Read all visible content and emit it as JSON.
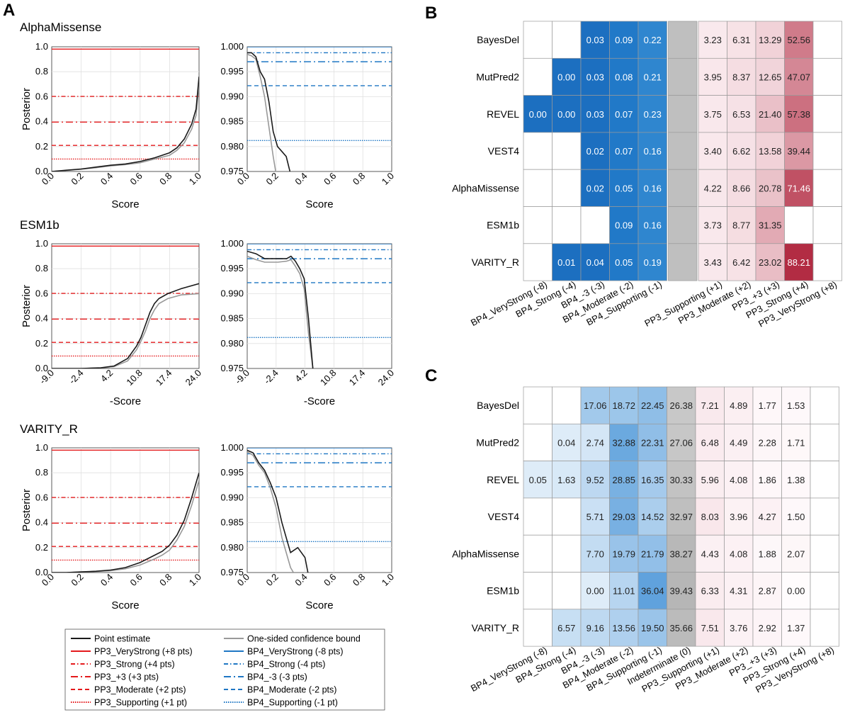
{
  "panel_labels": {
    "a": "A",
    "b": "B",
    "c": "C"
  },
  "chart_data": [
    {
      "type": "line",
      "panel": "A",
      "title": "AlphaMissense",
      "ylabel": "Posterior",
      "left": {
        "xlabel": "Score",
        "xlim": [
          0,
          1
        ],
        "ylim": [
          0,
          1
        ],
        "xticks": [
          "0.0",
          "0.2",
          "0.4",
          "0.6",
          "0.8",
          "1.0"
        ],
        "yticks": [
          "0.0",
          "0.2",
          "0.4",
          "0.6",
          "0.8",
          "1.0"
        ],
        "series": [
          {
            "name": "Point estimate",
            "x": [
              0,
              0.1,
              0.2,
              0.3,
              0.4,
              0.5,
              0.6,
              0.7,
              0.8,
              0.85,
              0.9,
              0.95,
              0.98,
              1.0
            ],
            "y": [
              0,
              0.01,
              0.02,
              0.035,
              0.05,
              0.06,
              0.08,
              0.11,
              0.15,
              0.19,
              0.26,
              0.38,
              0.5,
              0.76
            ]
          },
          {
            "name": "One-sided confidence bound",
            "x": [
              0,
              0.1,
              0.2,
              0.3,
              0.4,
              0.5,
              0.6,
              0.7,
              0.8,
              0.85,
              0.9,
              0.95,
              0.98,
              1.0
            ],
            "y": [
              0,
              0.008,
              0.018,
              0.03,
              0.045,
              0.055,
              0.07,
              0.1,
              0.13,
              0.17,
              0.23,
              0.34,
              0.45,
              0.7
            ]
          }
        ]
      },
      "right": {
        "xlabel": "Score",
        "xlim": [
          0,
          1
        ],
        "ylim": [
          0.975,
          1.0
        ],
        "xticks": [
          "0.0",
          "0.2",
          "0.4",
          "0.6",
          "0.8",
          "1.0"
        ],
        "yticks": [
          "0.975",
          "0.980",
          "0.985",
          "0.990",
          "0.995",
          "1.000"
        ],
        "series": [
          {
            "name": "Point estimate",
            "x": [
              0,
              0.03,
              0.06,
              0.09,
              0.12,
              0.15,
              0.18,
              0.21,
              0.24,
              0.27,
              0.3
            ],
            "y": [
              0.9988,
              0.9988,
              0.998,
              0.995,
              0.9935,
              0.989,
              0.983,
              0.98,
              0.979,
              0.978,
              0.9745
            ]
          },
          {
            "name": "One-sided confidence bound",
            "x": [
              0,
              0.03,
              0.06,
              0.09,
              0.12,
              0.15,
              0.18,
              0.2
            ],
            "y": [
              0.9985,
              0.9982,
              0.9975,
              0.994,
              0.99,
              0.984,
              0.978,
              0.9745
            ]
          }
        ]
      }
    },
    {
      "type": "line",
      "panel": "A",
      "title": "ESM1b",
      "ylabel": "Posterior",
      "left": {
        "xlabel": "-Score",
        "xlim": [
          -9,
          24
        ],
        "ylim": [
          0,
          1
        ],
        "xticks": [
          "-9.0",
          "-2.4",
          "4.2",
          "10.8",
          "17.4",
          "24.0"
        ],
        "yticks": [
          "0.0",
          "0.2",
          "0.4",
          "0.6",
          "0.8",
          "1.0"
        ],
        "series": [
          {
            "name": "Point estimate",
            "x": [
              -9,
              -2.4,
              2,
              5,
              8,
              10,
              11,
              12,
              13,
              14,
              15,
              17,
              20,
              24
            ],
            "y": [
              0,
              0,
              0.005,
              0.02,
              0.08,
              0.18,
              0.25,
              0.35,
              0.45,
              0.52,
              0.56,
              0.6,
              0.64,
              0.68
            ]
          },
          {
            "name": "One-sided confidence bound",
            "x": [
              -9,
              -2.4,
              2,
              5,
              8,
              10,
              11,
              12,
              13,
              14,
              15,
              17,
              20,
              24
            ],
            "y": [
              0,
              0,
              0.004,
              0.015,
              0.06,
              0.15,
              0.22,
              0.3,
              0.4,
              0.47,
              0.52,
              0.56,
              0.59,
              0.6
            ]
          }
        ]
      },
      "right": {
        "xlabel": "-Score",
        "xlim": [
          -9,
          24
        ],
        "ylim": [
          0.975,
          1.0
        ],
        "xticks": [
          "-9.0",
          "-2.4",
          "4.2",
          "10.8",
          "17.4",
          "24.0"
        ],
        "yticks": [
          "0.975",
          "0.980",
          "0.985",
          "0.990",
          "0.995",
          "1.000"
        ],
        "series": [
          {
            "name": "Point estimate",
            "x": [
              -9,
              -7,
              -5,
              -2,
              0,
              1,
              2,
              3,
              4,
              5,
              6
            ],
            "y": [
              0.9985,
              0.998,
              0.997,
              0.997,
              0.997,
              0.9975,
              0.9965,
              0.995,
              0.993,
              0.985,
              0.975
            ]
          },
          {
            "name": "One-sided confidence bound",
            "x": [
              -9,
              -7,
              -5,
              -2,
              0,
              1,
              2,
              3,
              4,
              5,
              6
            ],
            "y": [
              0.9975,
              0.9968,
              0.9963,
              0.9963,
              0.9965,
              0.9968,
              0.9955,
              0.994,
              0.991,
              0.982,
              0.975
            ]
          }
        ]
      }
    },
    {
      "type": "line",
      "panel": "A",
      "title": "VARITY_R",
      "ylabel": "Posterior",
      "left": {
        "xlabel": "Score",
        "xlim": [
          0,
          1
        ],
        "ylim": [
          0,
          1
        ],
        "xticks": [
          "0.0",
          "0.2",
          "0.4",
          "0.6",
          "0.8",
          "1.0"
        ],
        "yticks": [
          "0.0",
          "0.2",
          "0.4",
          "0.6",
          "0.8",
          "1.0"
        ],
        "series": [
          {
            "name": "Point estimate",
            "x": [
              0,
              0.1,
              0.2,
              0.3,
              0.4,
              0.5,
              0.6,
              0.7,
              0.75,
              0.8,
              0.85,
              0.9,
              0.95,
              1.0
            ],
            "y": [
              0,
              0,
              0.005,
              0.01,
              0.02,
              0.04,
              0.08,
              0.14,
              0.17,
              0.22,
              0.3,
              0.42,
              0.6,
              0.8
            ]
          },
          {
            "name": "One-sided confidence bound",
            "x": [
              0,
              0.1,
              0.2,
              0.3,
              0.4,
              0.5,
              0.6,
              0.7,
              0.75,
              0.8,
              0.85,
              0.9,
              0.95,
              1.0
            ],
            "y": [
              0,
              0,
              0.004,
              0.008,
              0.015,
              0.03,
              0.06,
              0.11,
              0.14,
              0.18,
              0.26,
              0.37,
              0.54,
              0.74
            ]
          }
        ]
      },
      "right": {
        "xlabel": "Score",
        "xlim": [
          0,
          1
        ],
        "ylim": [
          0.975,
          1.0
        ],
        "xticks": [
          "0.0",
          "0.2",
          "0.4",
          "0.6",
          "0.8",
          "1.0"
        ],
        "yticks": [
          "0.975",
          "0.980",
          "0.985",
          "0.990",
          "0.995",
          "1.000"
        ],
        "series": [
          {
            "name": "Point estimate",
            "x": [
              0,
              0.04,
              0.08,
              0.12,
              0.16,
              0.2,
              0.24,
              0.28,
              0.3,
              0.35,
              0.4,
              0.42
            ],
            "y": [
              0.9995,
              0.999,
              0.997,
              0.9955,
              0.993,
              0.99,
              0.985,
              0.981,
              0.979,
              0.98,
              0.978,
              0.975
            ]
          },
          {
            "name": "One-sided confidence bound",
            "x": [
              0,
              0.04,
              0.08,
              0.12,
              0.16,
              0.2,
              0.24,
              0.28,
              0.3,
              0.32
            ],
            "y": [
              0.9992,
              0.9985,
              0.9965,
              0.995,
              0.992,
              0.988,
              0.982,
              0.978,
              0.976,
              0.975
            ]
          }
        ]
      }
    },
    {
      "type": "heatmap",
      "panel": "B",
      "rows": [
        "BayesDel",
        "MutPred2",
        "REVEL",
        "VEST4",
        "AlphaMissense",
        "ESM1b",
        "VARITY_R"
      ],
      "columns": [
        "BP4_VeryStrong (-8)",
        "BP4_Strong (-4)",
        "BP4_-3 (-3)",
        "BP4_Moderate (-2)",
        "BP4_Supporting (-1)",
        "",
        "PP3_Supporting (+1)",
        "PP3_Moderate (+2)",
        "PP3_+3 (+3)",
        "PP3_Strong (+4)",
        "PP3_VeryStrong (+8)"
      ],
      "values": [
        [
          "",
          "",
          "0.03",
          "0.09",
          "0.22",
          "",
          "3.23",
          "6.31",
          "13.29",
          "52.56",
          ""
        ],
        [
          "",
          "0.00",
          "0.03",
          "0.08",
          "0.21",
          "",
          "3.95",
          "8.37",
          "12.65",
          "47.07",
          ""
        ],
        [
          "0.00",
          "0.00",
          "0.03",
          "0.07",
          "0.23",
          "",
          "3.75",
          "6.53",
          "21.40",
          "57.38",
          ""
        ],
        [
          "",
          "",
          "0.02",
          "0.07",
          "0.16",
          "",
          "3.40",
          "6.62",
          "13.58",
          "39.44",
          ""
        ],
        [
          "",
          "",
          "0.02",
          "0.05",
          "0.16",
          "",
          "4.22",
          "8.66",
          "20.78",
          "71.46",
          ""
        ],
        [
          "",
          "",
          "",
          "0.09",
          "0.16",
          "",
          "3.73",
          "8.77",
          "31.35",
          "",
          ""
        ],
        [
          "",
          "0.01",
          "0.04",
          "0.05",
          "0.19",
          "",
          "3.43",
          "6.42",
          "23.02",
          "88.21",
          ""
        ]
      ]
    },
    {
      "type": "heatmap",
      "panel": "C",
      "rows": [
        "BayesDel",
        "MutPred2",
        "REVEL",
        "VEST4",
        "AlphaMissense",
        "ESM1b",
        "VARITY_R"
      ],
      "columns": [
        "BP4_VeryStrong (-8)",
        "BP4_Strong (-4)",
        "BP4_-3 (-3)",
        "BP4_Moderate (-2)",
        "BP4_Supporting (-1)",
        "Indeterminate (0)",
        "PP3_Supporting (+1)",
        "PP3_Moderate (+2)",
        "PP3_+3 (+3)",
        "PP3_Strong (+4)",
        "PP3_VeryStrong (+8)"
      ],
      "values": [
        [
          "",
          "",
          "17.06",
          "18.72",
          "22.45",
          "26.38",
          "7.21",
          "4.89",
          "1.77",
          "1.53",
          ""
        ],
        [
          "",
          "0.04",
          "2.74",
          "32.88",
          "22.31",
          "27.06",
          "6.48",
          "4.49",
          "2.28",
          "1.71",
          ""
        ],
        [
          "0.05",
          "1.63",
          "9.52",
          "28.85",
          "16.35",
          "30.33",
          "5.96",
          "4.08",
          "1.86",
          "1.38",
          ""
        ],
        [
          "",
          "",
          "5.71",
          "29.03",
          "14.52",
          "32.97",
          "8.03",
          "3.96",
          "4.27",
          "1.50",
          ""
        ],
        [
          "",
          "",
          "7.70",
          "19.79",
          "21.79",
          "38.27",
          "4.43",
          "4.08",
          "1.88",
          "2.07",
          ""
        ],
        [
          "",
          "",
          "0.00",
          "11.01",
          "36.04",
          "39.43",
          "6.33",
          "4.31",
          "2.87",
          "0.00",
          ""
        ],
        [
          "",
          "6.57",
          "9.16",
          "13.56",
          "19.50",
          "35.66",
          "7.51",
          "3.76",
          "2.92",
          "1.37",
          ""
        ]
      ]
    }
  ],
  "legend": {
    "left": [
      "Point estimate",
      "PP3_VeryStrong (+8 pts)",
      "PP3_Strong (+4 pts)",
      "PP3_+3 (+3 pts)",
      "PP3_Moderate (+2 pts)",
      "PP3_Supporting (+1 pt)"
    ],
    "right": [
      "One-sided confidence bound",
      "BP4_VeryStrong (-8 pts)",
      "BP4_Strong (-4 pts)",
      "BP4_-3 (-3 pts)",
      "BP4_Moderate (-2 pts)",
      "BP4_Supporting (-1 pt)"
    ]
  },
  "thresholds": {
    "posterior_pp3": [
      0.981,
      0.602,
      0.396,
      0.209,
      0.1
    ],
    "posterior_bp4": [
      1.0,
      0.9988,
      0.997,
      0.9922,
      0.9812
    ]
  },
  "colors": {
    "point": "#1a1a1a",
    "bound": "#999999",
    "pp3": "#e41a1c",
    "bp4": "#1f77c4",
    "grid": "#e0e0e0",
    "indeterminate": "#bfbfbf"
  }
}
